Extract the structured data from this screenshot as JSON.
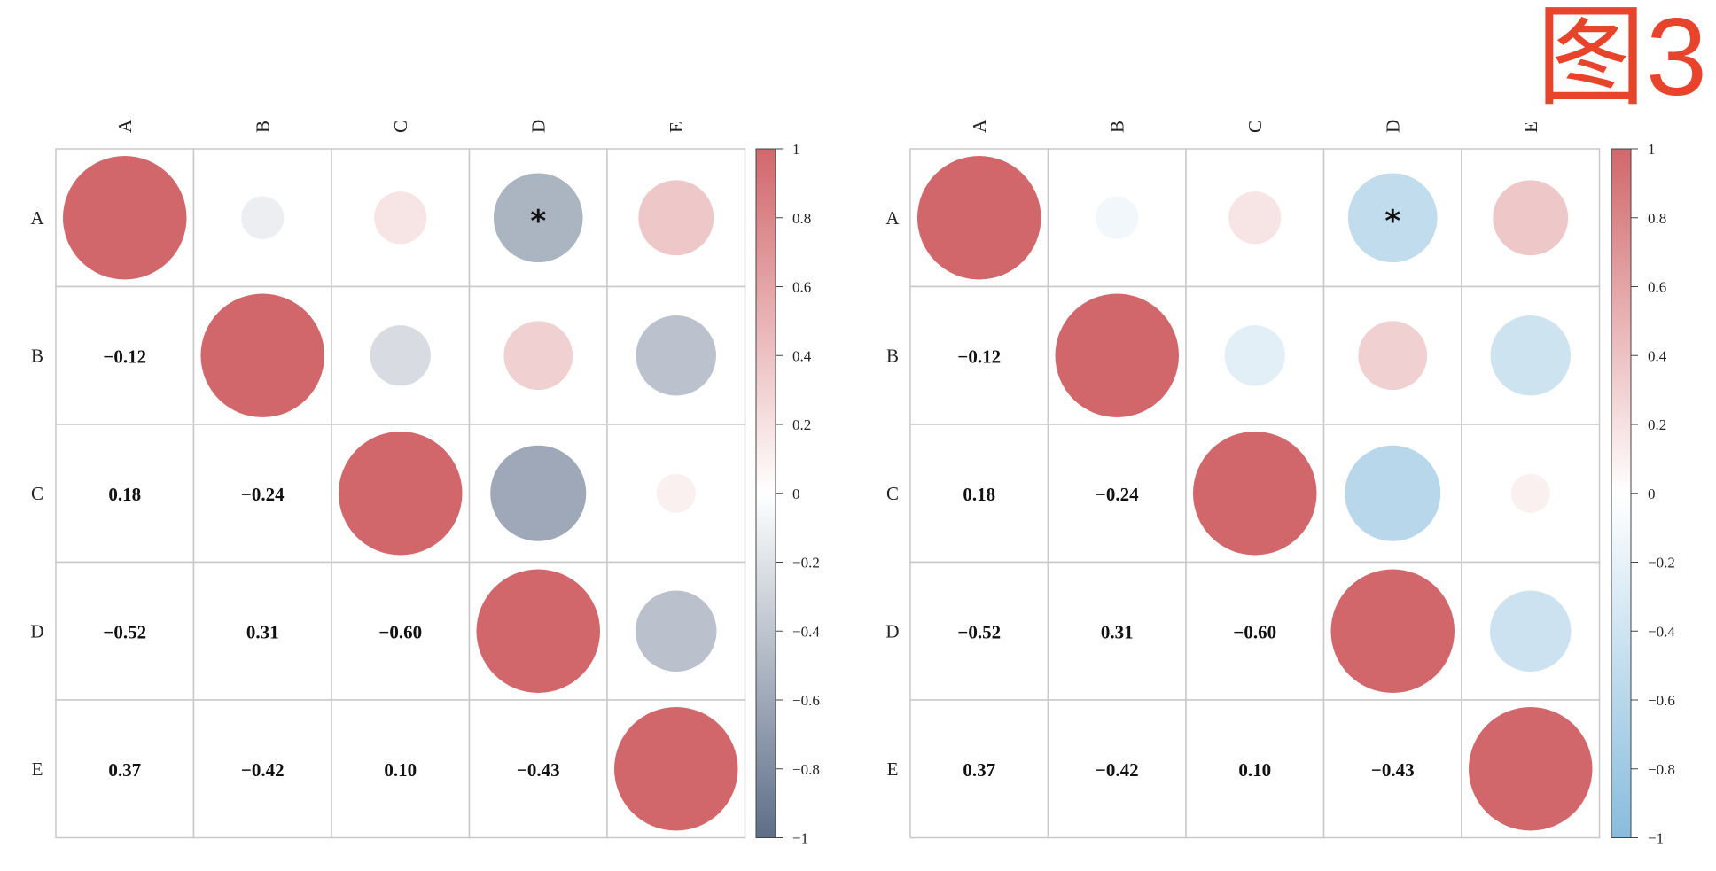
{
  "figure_label": "图3",
  "colors": {
    "positive": "#d1676b",
    "negative_left": "#5e6e88",
    "negative_right": "#88bcdc",
    "grid": "#c8c8c8"
  },
  "chart_data": [
    {
      "type": "heatmap",
      "style": "correlogram-mixed",
      "variables": [
        "A",
        "B",
        "C",
        "D",
        "E"
      ],
      "upper": "circle",
      "lower": "number",
      "matrix": [
        [
          1.0,
          -0.12,
          0.18,
          -0.52,
          0.37
        ],
        [
          -0.12,
          1.0,
          -0.24,
          0.31,
          -0.42
        ],
        [
          0.18,
          -0.24,
          1.0,
          -0.6,
          0.1
        ],
        [
          -0.52,
          0.31,
          -0.6,
          1.0,
          -0.43
        ],
        [
          0.37,
          -0.42,
          0.1,
          -0.43,
          1.0
        ]
      ],
      "lower_labels": {
        "B_A": "−0.12",
        "C_A": "0.18",
        "C_B": "−0.24",
        "D_A": "−0.52",
        "D_B": "0.31",
        "D_C": "−0.60",
        "E_A": "0.37",
        "E_B": "−0.42",
        "E_C": "0.10",
        "E_D": "−0.43"
      },
      "significance": [
        {
          "row": "A",
          "col": "D",
          "mark": "*"
        }
      ],
      "colorbar": {
        "range": [
          -1,
          1
        ],
        "ticks": [
          "1",
          "0.8",
          "0.6",
          "0.4",
          "0.2",
          "0",
          "−0.2",
          "−0.4",
          "−0.6",
          "−0.8",
          "−1"
        ],
        "negative_color": "#5e6e88",
        "positive_color": "#d1676b"
      }
    },
    {
      "type": "heatmap",
      "style": "correlogram-mixed",
      "variables": [
        "A",
        "B",
        "C",
        "D",
        "E"
      ],
      "upper": "circle",
      "lower": "number",
      "matrix": [
        [
          1.0,
          -0.12,
          0.18,
          -0.52,
          0.37
        ],
        [
          -0.12,
          1.0,
          -0.24,
          0.31,
          -0.42
        ],
        [
          0.18,
          -0.24,
          1.0,
          -0.6,
          0.1
        ],
        [
          -0.52,
          0.31,
          -0.6,
          1.0,
          -0.43
        ],
        [
          0.37,
          -0.42,
          0.1,
          -0.43,
          1.0
        ]
      ],
      "lower_labels": {
        "B_A": "−0.12",
        "C_A": "0.18",
        "C_B": "−0.24",
        "D_A": "−0.52",
        "D_B": "0.31",
        "D_C": "−0.60",
        "E_A": "0.37",
        "E_B": "−0.42",
        "E_C": "0.10",
        "E_D": "−0.43"
      },
      "significance": [
        {
          "row": "A",
          "col": "D",
          "mark": "*"
        }
      ],
      "colorbar": {
        "range": [
          -1,
          1
        ],
        "ticks": [
          "1",
          "0.8",
          "0.6",
          "0.4",
          "0.2",
          "0",
          "−0.2",
          "−0.4",
          "−0.6",
          "−0.8",
          "−1"
        ],
        "negative_color": "#88bcdc",
        "positive_color": "#d1676b"
      }
    }
  ]
}
